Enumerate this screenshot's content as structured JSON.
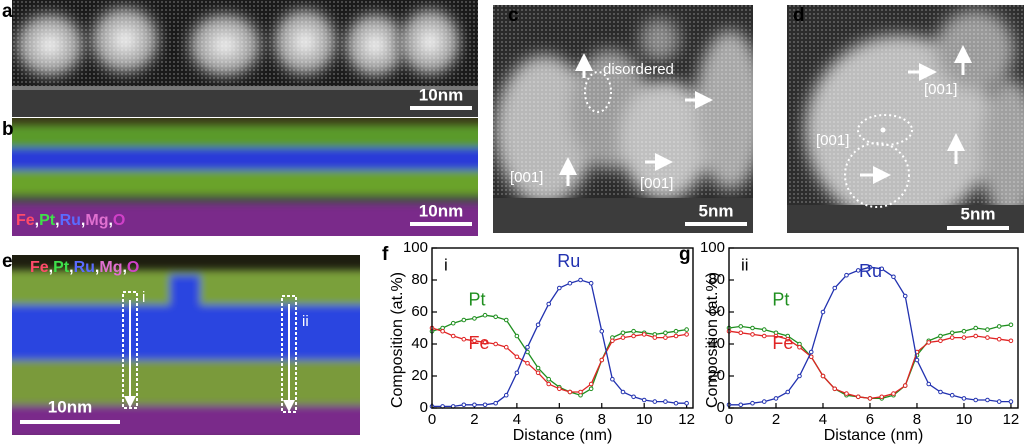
{
  "panels": {
    "a": {
      "label": "a",
      "scale_bar": "10nm"
    },
    "b": {
      "label": "b",
      "scale_bar": "10nm",
      "elements": [
        "Fe",
        "Pt",
        "Ru",
        "Mg",
        "O"
      ],
      "separator": ",",
      "element_colors": [
        "#ff4a6a",
        "#3ee04a",
        "#5a6bff",
        "#e070d0",
        "#d040c8"
      ]
    },
    "c": {
      "label": "c",
      "scale_bar": "5nm",
      "annotations": [
        "disordered",
        "[001]",
        "[001]"
      ]
    },
    "d": {
      "label": "d",
      "scale_bar": "5nm",
      "annotations": [
        "[001]",
        "[001]"
      ]
    },
    "e": {
      "label": "e",
      "scale_bar": "10nm",
      "elements": [
        "Fe",
        "Pt",
        "Ru",
        "Mg",
        "O"
      ],
      "separator": ",",
      "element_colors": [
        "#ff4a6a",
        "#3ee04a",
        "#5a6bff",
        "#e070d0",
        "#d040c8"
      ],
      "annotations": [
        "i",
        "ii"
      ]
    }
  },
  "chart_data": [
    {
      "type": "line",
      "panel_label": "f",
      "annotation": "i",
      "xlabel": "Distance (nm)",
      "ylabel": "Composition (at.%)",
      "xlim": [
        0,
        12.3
      ],
      "ylim": [
        0,
        100
      ],
      "xticks": [
        0,
        2,
        4,
        6,
        8,
        10,
        12
      ],
      "yticks": [
        0,
        20,
        40,
        60,
        80,
        100
      ],
      "x": [
        0,
        0.5,
        1,
        1.5,
        2,
        2.5,
        3,
        3.5,
        4,
        4.5,
        5,
        5.5,
        6,
        6.5,
        7,
        7.5,
        8,
        8.5,
        9,
        9.5,
        10,
        10.5,
        11,
        11.5,
        12
      ],
      "series": [
        {
          "name": "Pt",
          "color": "#1f8f1f",
          "values": [
            48,
            50,
            53,
            55,
            56,
            58,
            57,
            55,
            45,
            35,
            25,
            18,
            13,
            10,
            8,
            12,
            30,
            44,
            47,
            48,
            47,
            46,
            47,
            48,
            49
          ]
        },
        {
          "name": "Fe",
          "color": "#e02424",
          "values": [
            50,
            48,
            45,
            43,
            42,
            41,
            40,
            38,
            32,
            28,
            22,
            15,
            12,
            10,
            10,
            15,
            30,
            42,
            44,
            45,
            46,
            44,
            44,
            45,
            46
          ]
        },
        {
          "name": "Ru",
          "color": "#2232b0",
          "values": [
            1,
            1,
            1,
            2,
            2,
            2,
            3,
            8,
            22,
            38,
            52,
            65,
            75,
            78,
            80,
            78,
            48,
            18,
            10,
            7,
            5,
            4,
            4,
            3,
            3
          ]
        }
      ]
    },
    {
      "type": "line",
      "panel_label": "g",
      "annotation": "ii",
      "xlabel": "Distance (nm)",
      "ylabel": "Composition (at.%)",
      "xlim": [
        0,
        12.3
      ],
      "ylim": [
        0,
        100
      ],
      "xticks": [
        0,
        2,
        4,
        6,
        8,
        10,
        12
      ],
      "yticks": [
        0,
        20,
        40,
        60,
        80,
        100
      ],
      "x": [
        0,
        0.5,
        1,
        1.5,
        2,
        2.5,
        3,
        3.5,
        4,
        4.5,
        5,
        5.5,
        6,
        6.5,
        7,
        7.5,
        8,
        8.5,
        9,
        9.5,
        10,
        10.5,
        11,
        11.5,
        12
      ],
      "series": [
        {
          "name": "Pt",
          "color": "#1f8f1f",
          "values": [
            50,
            51,
            50,
            49,
            47,
            45,
            40,
            32,
            20,
            12,
            8,
            7,
            6,
            6,
            8,
            14,
            33,
            42,
            45,
            47,
            48,
            50,
            49,
            51,
            52
          ]
        },
        {
          "name": "Fe",
          "color": "#e02424",
          "values": [
            48,
            47,
            46,
            45,
            45,
            43,
            38,
            32,
            20,
            12,
            9,
            7,
            6,
            7,
            9,
            14,
            35,
            41,
            42,
            44,
            44,
            45,
            44,
            43,
            42
          ]
        },
        {
          "name": "Ru",
          "color": "#2232b0",
          "values": [
            2,
            2,
            3,
            4,
            6,
            10,
            20,
            35,
            60,
            75,
            83,
            86,
            88,
            87,
            82,
            70,
            30,
            15,
            10,
            8,
            6,
            5,
            5,
            4,
            4
          ]
        }
      ]
    }
  ]
}
